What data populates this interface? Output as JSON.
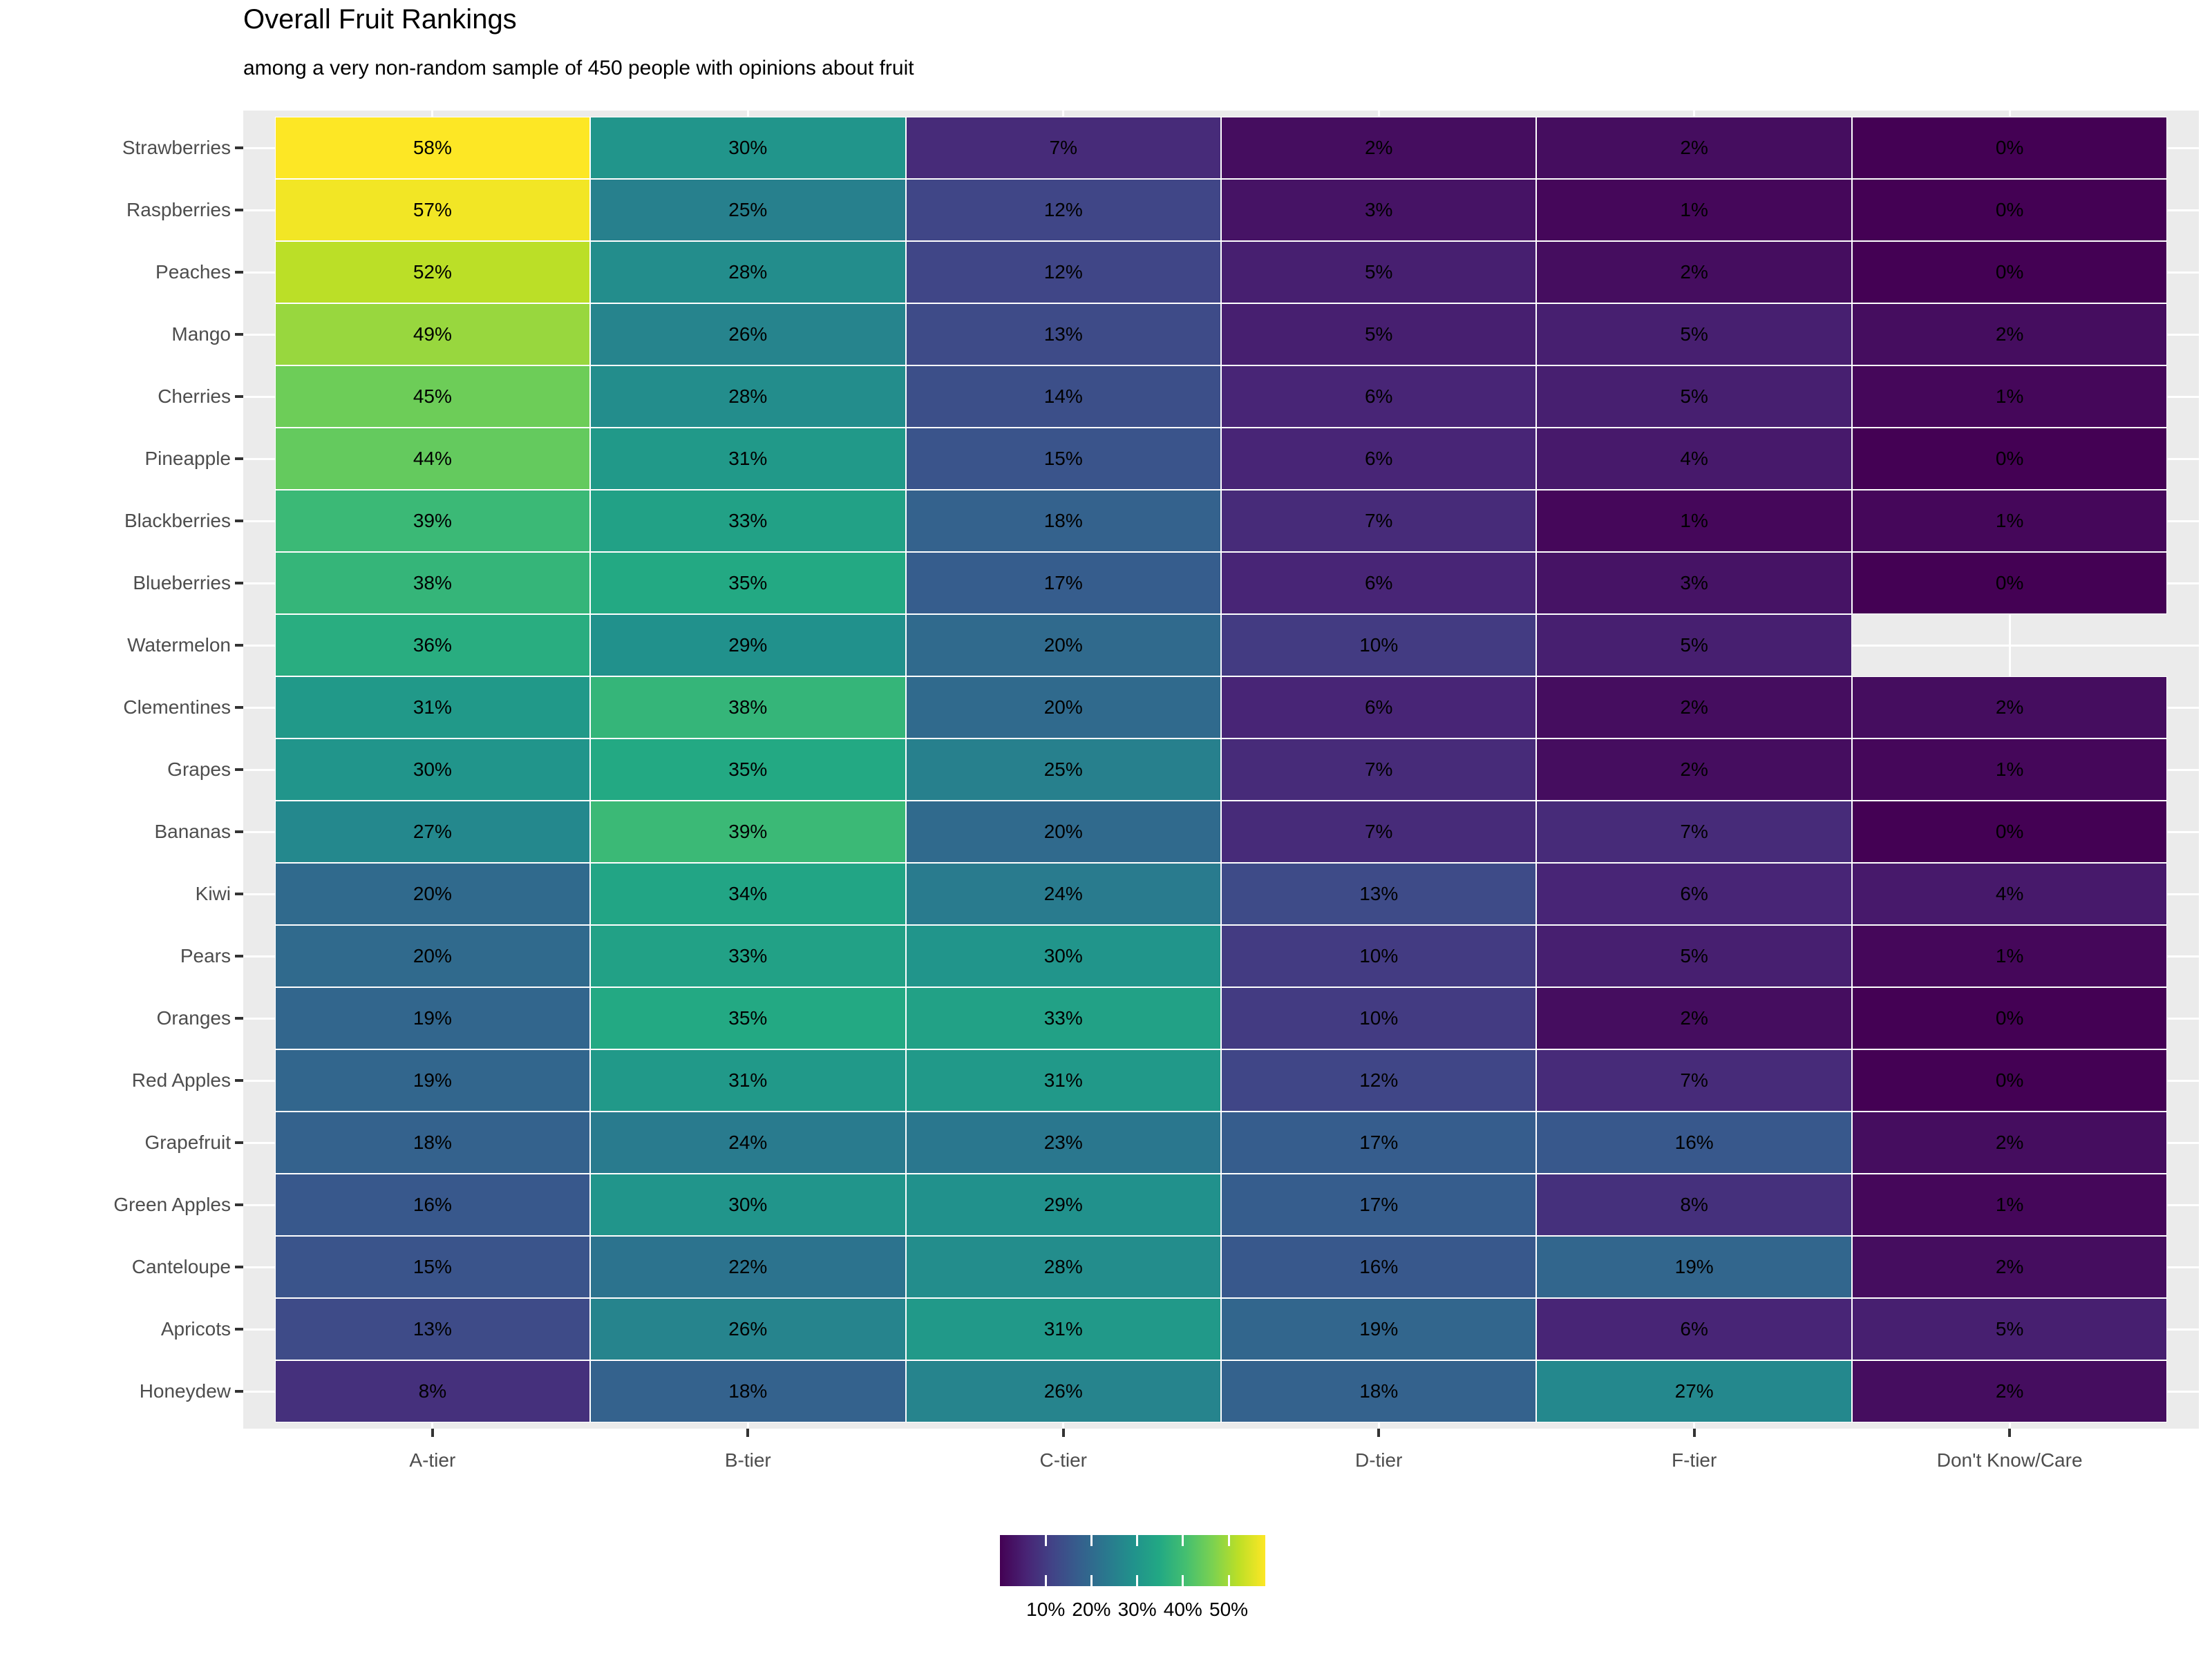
{
  "header": {
    "title": "Overall Fruit Rankings",
    "subtitle": "among a very non-random sample of 450 people with opinions about fruit"
  },
  "chart_data": {
    "type": "heatmap",
    "title": "Overall Fruit Rankings",
    "subtitle": "among a very non-random sample of 450 people with opinions about fruit",
    "x_categories": [
      "A-tier",
      "B-tier",
      "C-tier",
      "D-tier",
      "F-tier",
      "Don't Know/Care"
    ],
    "y_categories": [
      "Strawberries",
      "Raspberries",
      "Peaches",
      "Mango",
      "Cherries",
      "Pineapple",
      "Blackberries",
      "Blueberries",
      "Watermelon",
      "Clementines",
      "Grapes",
      "Bananas",
      "Kiwi",
      "Pears",
      "Oranges",
      "Red Apples",
      "Grapefruit",
      "Green Apples",
      "Canteloupe",
      "Apricots",
      "Honeydew"
    ],
    "values_percent": [
      [
        58,
        30,
        7,
        2,
        2,
        0
      ],
      [
        57,
        25,
        12,
        3,
        1,
        0
      ],
      [
        52,
        28,
        12,
        5,
        2,
        0
      ],
      [
        49,
        26,
        13,
        5,
        5,
        2
      ],
      [
        45,
        28,
        14,
        6,
        5,
        1
      ],
      [
        44,
        31,
        15,
        6,
        4,
        0
      ],
      [
        39,
        33,
        18,
        7,
        1,
        1
      ],
      [
        38,
        35,
        17,
        6,
        3,
        0
      ],
      [
        36,
        29,
        20,
        10,
        5,
        null
      ],
      [
        31,
        38,
        20,
        6,
        2,
        2
      ],
      [
        30,
        35,
        25,
        7,
        2,
        1
      ],
      [
        27,
        39,
        20,
        7,
        7,
        0
      ],
      [
        20,
        34,
        24,
        13,
        6,
        4
      ],
      [
        20,
        33,
        30,
        10,
        5,
        1
      ],
      [
        19,
        35,
        33,
        10,
        2,
        0
      ],
      [
        19,
        31,
        31,
        12,
        7,
        0
      ],
      [
        18,
        24,
        23,
        17,
        16,
        2
      ],
      [
        16,
        30,
        29,
        17,
        8,
        1
      ],
      [
        15,
        22,
        28,
        16,
        19,
        2
      ],
      [
        13,
        26,
        31,
        19,
        6,
        5
      ],
      [
        8,
        18,
        26,
        18,
        27,
        2
      ]
    ],
    "value_suffix": "%",
    "color_scale": {
      "name": "viridis",
      "domain_percent": [
        0,
        58
      ],
      "stops": [
        "#440154",
        "#482475",
        "#414487",
        "#355F8D",
        "#2A788E",
        "#21918C",
        "#22A884",
        "#44BF70",
        "#7AD151",
        "#BDDF26",
        "#FDE725"
      ]
    },
    "legend": {
      "position": "bottom",
      "tick_values": [
        10,
        20,
        30,
        40,
        50
      ],
      "tick_labels": [
        "10%",
        "20%",
        "30%",
        "40%",
        "50%"
      ]
    },
    "layout_hints": {
      "grid": "white major gridlines at category centers",
      "missing_cell_note": "Watermelon has no Don't Know/Care tile"
    }
  },
  "colors": {
    "background": "#FFFFFF",
    "panel_background": "#EBEBEB",
    "grid": "#FFFFFF",
    "axis_text": "#4D4D4D",
    "tick_mark": "#333333",
    "cell_text": "#000000",
    "title_text": "#000000"
  }
}
